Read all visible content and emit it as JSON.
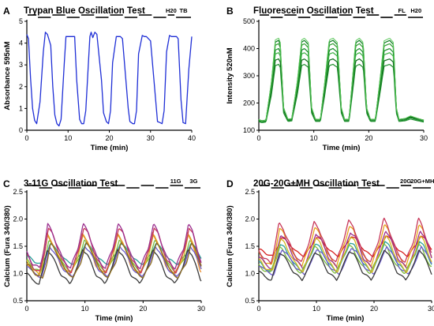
{
  "chart_data": [
    {
      "panel_letter": "A",
      "type": "line",
      "title": "Trypan Blue Oscillation Test",
      "xlabel": "Time (min)",
      "ylabel": "Absorbance 595nM",
      "xlim": [
        0,
        40
      ],
      "ylim": [
        0,
        5
      ],
      "xticks": [
        0,
        10,
        20,
        30,
        40
      ],
      "yticks": [
        0,
        1,
        2,
        3,
        4,
        5
      ],
      "phase_bar": {
        "segments": [
          [
            0,
            2.5
          ],
          [
            2.5,
            6
          ],
          [
            6,
            9.5
          ],
          [
            9.5,
            13
          ],
          [
            13,
            16.5
          ],
          [
            16.5,
            20
          ],
          [
            20,
            23.5
          ],
          [
            23.5,
            27
          ],
          [
            27,
            30.5
          ],
          [
            30.5,
            34
          ],
          [
            34,
            36
          ],
          [
            36,
            40
          ]
        ],
        "high_start": true
      },
      "phase_labels": [
        {
          "text": "H20",
          "x": 35
        },
        {
          "text": "TB",
          "x": 38
        }
      ],
      "series": [
        {
          "color": "#1f2fd6",
          "x": [
            0,
            0.4,
            0.9,
            1.4,
            1.9,
            2.4,
            3.2,
            4.0,
            4.5,
            5.0,
            5.8,
            6.3,
            6.8,
            7.3,
            7.8,
            8.3,
            9.1,
            9.5,
            10.0,
            10.6,
            11.6,
            12.1,
            12.8,
            13.3,
            13.8,
            14.3,
            15.3,
            15.6,
            16.0,
            16.5,
            17.0,
            18.1,
            18.6,
            19.3,
            19.8,
            20.3,
            20.8,
            21.7,
            22.2,
            22.7,
            23.2,
            24.6,
            25.0,
            25.7,
            26.1,
            26.6,
            27.1,
            28.0,
            28.5,
            29.0,
            29.5,
            30.0,
            31.2,
            31.7,
            32.3,
            32.8,
            33.3,
            33.9,
            34.6,
            35.1,
            35.6,
            36.3,
            36.7,
            37.4,
            37.9,
            38.5,
            39.3,
            40.0
          ],
          "values": [
            4.4,
            4.2,
            2.4,
            1.0,
            0.45,
            0.3,
            1.3,
            3.6,
            4.5,
            4.4,
            3.9,
            2.0,
            0.7,
            0.3,
            0.2,
            0.5,
            3.1,
            4.3,
            4.3,
            4.3,
            4.3,
            2.3,
            0.5,
            0.3,
            0.3,
            0.9,
            4.3,
            4.5,
            4.25,
            4.5,
            4.4,
            2.3,
            0.8,
            0.4,
            0.3,
            0.9,
            3.1,
            4.3,
            4.3,
            4.3,
            4.2,
            1.0,
            0.4,
            0.3,
            0.3,
            0.9,
            3.5,
            4.35,
            4.3,
            4.3,
            4.2,
            4.1,
            1.5,
            0.4,
            0.35,
            0.3,
            0.9,
            3.6,
            4.35,
            4.3,
            4.3,
            4.3,
            4.2,
            1.4,
            0.35,
            0.3,
            2.8,
            4.3
          ]
        }
      ]
    },
    {
      "panel_letter": "B",
      "type": "line",
      "title": "Fluorescein Oscillation Test",
      "xlabel": "Time (min)",
      "ylabel": "Intensity 520nM",
      "xlim": [
        0,
        30
      ],
      "ylim": [
        100,
        500
      ],
      "xticks": [
        0,
        10,
        20,
        30
      ],
      "yticks": [
        100,
        200,
        300,
        400,
        500
      ],
      "phase_bar": {
        "segments": [
          [
            0,
            2
          ],
          [
            2,
            4.5
          ],
          [
            4.5,
            7
          ],
          [
            7,
            9.5
          ],
          [
            9.5,
            12
          ],
          [
            12,
            14.5
          ],
          [
            14.5,
            17
          ],
          [
            17,
            19.5
          ],
          [
            19.5,
            22
          ],
          [
            22,
            24.5
          ],
          [
            24.5,
            27
          ],
          [
            27,
            30
          ]
        ],
        "high_start": true
      },
      "phase_labels": [
        {
          "text": "FL",
          "x": 26
        },
        {
          "text": "H20",
          "x": 28.6
        }
      ],
      "shape": {
        "t": [
          0,
          0.5,
          1.3,
          2.3,
          3.0,
          3.6,
          3.9,
          4.5,
          5.3,
          6.0,
          7.0,
          7.8,
          8.3,
          9.0,
          9.6,
          10.3,
          11.2,
          12.0,
          12.8,
          13.5,
          14.3,
          15.0,
          15.6,
          16.4,
          17.0,
          17.6,
          18.3,
          19.0,
          19.6,
          20.3,
          21.2,
          22.0,
          22.8,
          23.8,
          24.5,
          25.0,
          25.5,
          26.6,
          27.6,
          28.5,
          30.0
        ],
        "f": [
          0.06,
          0.04,
          0.05,
          0.5,
          0.98,
          1.0,
          0.95,
          0.2,
          0.06,
          0.07,
          0.5,
          0.98,
          1.0,
          0.95,
          0.2,
          0.06,
          0.06,
          0.5,
          0.98,
          1.0,
          0.95,
          0.2,
          0.06,
          0.06,
          0.5,
          0.97,
          1.0,
          0.95,
          0.2,
          0.06,
          0.06,
          0.5,
          0.97,
          1.0,
          0.95,
          0.2,
          0.06,
          0.07,
          0.1,
          0.08,
          0.05
        ]
      },
      "series": [
        {
          "color": "#0b7a1f",
          "base": 120,
          "peak": 430,
          "width": 1.2
        },
        {
          "color": "#2e9c2e",
          "base": 122,
          "peak": 418,
          "width": 1.2
        },
        {
          "color": "#138a26",
          "base": 118,
          "peak": 400,
          "width": 1.2
        },
        {
          "color": "#3cb043",
          "base": 124,
          "peak": 385,
          "width": 1.2
        },
        {
          "color": "#0e6b1a",
          "base": 125,
          "peak": 362,
          "width": 1.2
        },
        {
          "color": "#1d8f2c",
          "base": 119,
          "peak": 342,
          "width": 1.2
        },
        {
          "color": "#5cc85c",
          "base": 121,
          "peak": 438,
          "width": 1.0
        }
      ]
    },
    {
      "panel_letter": "C",
      "type": "line",
      "title": "3-11G Oscillation Test",
      "xlabel": "Time (min)",
      "ylabel": "Calcium (Fura 340/380)",
      "xlim": [
        0,
        30
      ],
      "ylim": [
        0.5,
        2.5
      ],
      "xticks": [
        0,
        10,
        20,
        30
      ],
      "yticks": [
        0.5,
        1.0,
        1.5,
        2.0,
        2.5
      ],
      "phase_bar": {
        "segments": [
          [
            0,
            2
          ],
          [
            2,
            4.5
          ],
          [
            4.5,
            7
          ],
          [
            7,
            9.5
          ],
          [
            9.5,
            12
          ],
          [
            12,
            14.5
          ],
          [
            14.5,
            17
          ],
          [
            17,
            19.5
          ],
          [
            19.5,
            22
          ],
          [
            22,
            24.5
          ],
          [
            24.5,
            27
          ],
          [
            27,
            30
          ]
        ],
        "high_start": true
      },
      "phase_labels": [
        {
          "text": "11G",
          "x": 25.6
        },
        {
          "text": "3G",
          "x": 28.7
        }
      ],
      "shape": {
        "t": [
          0,
          1.0,
          2.2,
          3.0,
          3.6,
          4.3,
          6.0,
          7.5,
          8.8,
          9.7,
          10.5,
          12.0,
          13.5,
          14.8,
          15.7,
          16.5,
          18.0,
          19.5,
          20.9,
          21.8,
          22.5,
          24.0,
          25.5,
          27.0,
          27.8,
          28.5,
          30.0
        ],
        "f": [
          0.4,
          0.15,
          0.05,
          0.5,
          1.0,
          0.85,
          0.3,
          0.05,
          0.5,
          1.0,
          0.85,
          0.3,
          0.05,
          0.5,
          1.0,
          0.85,
          0.3,
          0.05,
          0.5,
          1.0,
          0.85,
          0.3,
          0.05,
          0.5,
          1.0,
          0.85,
          0.15
        ]
      },
      "series": [
        {
          "color": "#2aa198",
          "base": 1.15,
          "peak": 1.55,
          "phase": 0.4
        },
        {
          "color": "#7fbf3f",
          "base": 1.0,
          "peak": 1.6,
          "phase": 0.2
        },
        {
          "color": "#d4b51a",
          "base": 0.95,
          "peak": 1.7,
          "phase": 0.0
        },
        {
          "color": "#e88b2a",
          "base": 0.92,
          "peak": 1.75,
          "phase": -0.2
        },
        {
          "color": "#c8385a",
          "base": 0.98,
          "peak": 1.85,
          "phase": 0.1
        },
        {
          "color": "#9b2f8f",
          "base": 1.05,
          "peak": 1.9,
          "phase": 0.0
        },
        {
          "color": "#6a5acd",
          "base": 0.9,
          "peak": 1.5,
          "phase": 0.3
        },
        {
          "color": "#3a3a3a",
          "base": 0.78,
          "peak": 1.45,
          "phase": -0.1
        },
        {
          "color": "#8c6d1f",
          "base": 0.88,
          "peak": 1.55,
          "phase": 0.5
        }
      ]
    },
    {
      "panel_letter": "D",
      "type": "line",
      "title": "20G-20G+MH Oscillation Test",
      "xlabel": "Time (min)",
      "ylabel": "Calcium (Fura 340/380)",
      "xlim": [
        0,
        30
      ],
      "ylim": [
        0.5,
        2.5
      ],
      "xticks": [
        0,
        10,
        20,
        30
      ],
      "yticks": [
        0.5,
        1.0,
        1.5,
        2.0,
        2.5
      ],
      "phase_bar": {
        "segments": [
          [
            0,
            2
          ],
          [
            2,
            4.5
          ],
          [
            4.5,
            7
          ],
          [
            7,
            9.5
          ],
          [
            9.5,
            12
          ],
          [
            12,
            14.5
          ],
          [
            14.5,
            17
          ],
          [
            17,
            19.5
          ],
          [
            19.5,
            22
          ],
          [
            22,
            24.5
          ],
          [
            24.5,
            26.6
          ],
          [
            26.6,
            30
          ]
        ],
        "high_start": true
      },
      "phase_labels": [
        {
          "text": "20G",
          "x": 25.5
        },
        {
          "text": "20G+MH",
          "x": 28.4
        }
      ],
      "shape": {
        "t": [
          0,
          1.0,
          2.2,
          3.0,
          3.6,
          4.3,
          6.0,
          7.5,
          8.8,
          9.7,
          10.5,
          12.0,
          13.5,
          14.8,
          15.7,
          16.5,
          18.0,
          19.5,
          20.9,
          21.8,
          22.5,
          24.0,
          25.5,
          27.0,
          27.8,
          28.5,
          30.0
        ],
        "f": [
          0.35,
          0.15,
          0.05,
          0.5,
          0.9,
          0.8,
          0.3,
          0.05,
          0.5,
          0.92,
          0.8,
          0.3,
          0.05,
          0.55,
          0.95,
          0.85,
          0.3,
          0.05,
          0.55,
          1.0,
          0.85,
          0.3,
          0.05,
          0.55,
          1.0,
          0.85,
          0.25
        ]
      },
      "series": [
        {
          "color": "#d62020",
          "base": 1.3,
          "peak": 1.7,
          "phase": 0.3
        },
        {
          "color": "#e8a21a",
          "base": 1.1,
          "peak": 1.9,
          "phase": 0.0
        },
        {
          "color": "#c8385a",
          "base": 1.15,
          "peak": 2.0,
          "phase": -0.1
        },
        {
          "color": "#9b2f8f",
          "base": 1.05,
          "peak": 1.8,
          "phase": 0.2
        },
        {
          "color": "#2aa198",
          "base": 1.0,
          "peak": 1.6,
          "phase": 0.1
        },
        {
          "color": "#7fbf3f",
          "base": 0.98,
          "peak": 1.55,
          "phase": -0.2
        },
        {
          "color": "#6a5acd",
          "base": 0.95,
          "peak": 1.5,
          "phase": 0.4
        },
        {
          "color": "#3a3a3a",
          "base": 0.85,
          "peak": 1.45,
          "phase": 0.0
        },
        {
          "color": "#d4b51a",
          "base": 1.0,
          "peak": 1.7,
          "phase": 0.15
        }
      ]
    }
  ]
}
